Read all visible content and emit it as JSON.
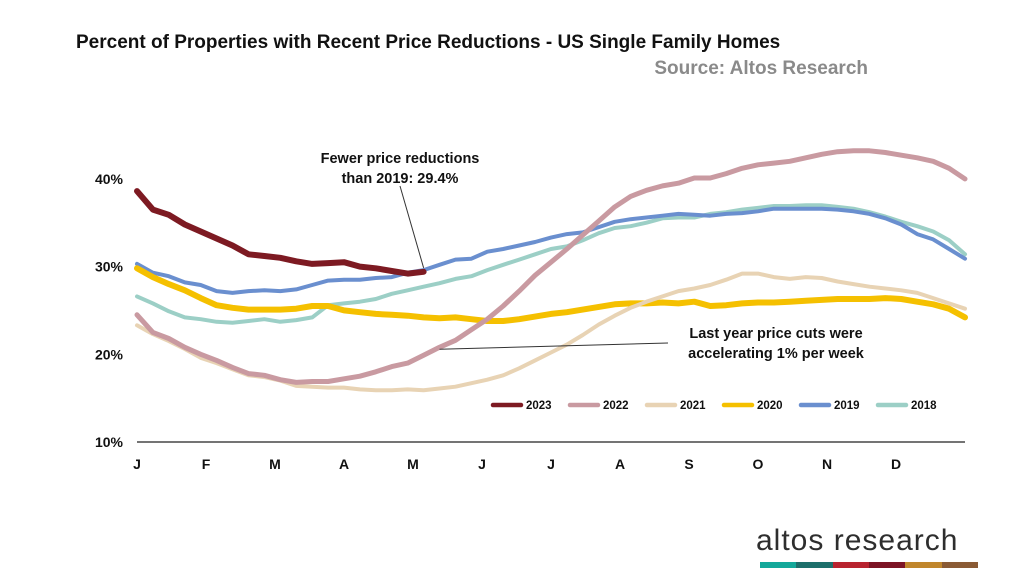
{
  "title": "Percent of Properties with Recent Price Reductions - US Single Family Homes",
  "subtitle": "Source: Altos Research",
  "logo": {
    "text": "altos research",
    "stripe_colors": [
      "#14a89a",
      "#1d6f6b",
      "#b8232f",
      "#7c1424",
      "#c0862b",
      "#8a5a34"
    ]
  },
  "chart_data": {
    "type": "line",
    "title": "Percent of Properties with Recent Price Reductions - US Single Family Homes",
    "subtitle": "Source: Altos Research",
    "xlabel": "",
    "ylabel": "",
    "x_tick_labels": [
      "J",
      "F",
      "M",
      "A",
      "M",
      "J",
      "J",
      "A",
      "S",
      "O",
      "N",
      "D"
    ],
    "x_range": [
      0,
      52
    ],
    "ylim": [
      10,
      45
    ],
    "y_ticks": [
      10,
      20,
      30,
      40
    ],
    "y_tick_labels": [
      "10%",
      "20%",
      "30%",
      "40%"
    ],
    "legend_position": "bottom-right",
    "grid": false,
    "series": [
      {
        "name": "2023",
        "color": "#7d1a22",
        "width": 6,
        "x": [
          0,
          1,
          2,
          3,
          4,
          5,
          6,
          7,
          8,
          9,
          10,
          11,
          12,
          13,
          14,
          15,
          16,
          17,
          18
        ],
        "y": [
          38.6,
          36.5,
          35.9,
          34.8,
          34.0,
          33.2,
          32.4,
          31.4,
          31.2,
          31.0,
          30.6,
          30.3,
          30.4,
          30.5,
          30.0,
          29.8,
          29.5,
          29.2,
          29.4
        ]
      },
      {
        "name": "2022",
        "color": "#c99aa1",
        "width": 5,
        "x": [
          0,
          1,
          2,
          3,
          4,
          5,
          6,
          7,
          8,
          9,
          10,
          11,
          12,
          13,
          14,
          15,
          16,
          17,
          18,
          19,
          20,
          21,
          22,
          23,
          24,
          25,
          26,
          27,
          28,
          29,
          30,
          31,
          32,
          33,
          34,
          35,
          36,
          37,
          38,
          39,
          40,
          41,
          42,
          43,
          44,
          45,
          46,
          47,
          48,
          49,
          50,
          51,
          52
        ],
        "y": [
          24.5,
          22.5,
          21.8,
          20.8,
          20.0,
          19.3,
          18.5,
          17.8,
          17.6,
          17.1,
          16.8,
          16.9,
          16.9,
          17.2,
          17.5,
          18.0,
          18.6,
          19.0,
          19.9,
          20.8,
          21.6,
          22.8,
          24.0,
          25.5,
          27.2,
          29.0,
          30.5,
          32.0,
          33.6,
          35.2,
          36.8,
          38.0,
          38.7,
          39.2,
          39.5,
          40.1,
          40.1,
          40.6,
          41.2,
          41.6,
          41.8,
          42.0,
          42.4,
          42.8,
          43.1,
          43.2,
          43.2,
          43.0,
          42.7,
          42.4,
          42.0,
          41.2,
          40.0
        ]
      },
      {
        "name": "2021",
        "color": "#e8d3b4",
        "width": 4,
        "x": [
          0,
          1,
          2,
          3,
          4,
          5,
          6,
          7,
          8,
          9,
          10,
          11,
          12,
          13,
          14,
          15,
          16,
          17,
          18,
          19,
          20,
          21,
          22,
          23,
          24,
          25,
          26,
          27,
          28,
          29,
          30,
          31,
          32,
          33,
          34,
          35,
          36,
          37,
          38,
          39,
          40,
          41,
          42,
          43,
          44,
          45,
          46,
          47,
          48,
          49,
          50,
          51,
          52
        ],
        "y": [
          23.3,
          22.3,
          21.5,
          20.6,
          19.6,
          19.0,
          18.3,
          17.6,
          17.4,
          17.0,
          16.4,
          16.3,
          16.2,
          16.2,
          16.0,
          15.9,
          15.9,
          16.0,
          15.9,
          16.1,
          16.3,
          16.7,
          17.1,
          17.6,
          18.4,
          19.3,
          20.2,
          21.1,
          22.2,
          23.4,
          24.4,
          25.3,
          26.0,
          26.6,
          27.2,
          27.5,
          27.9,
          28.5,
          29.2,
          29.2,
          28.8,
          28.6,
          28.8,
          28.7,
          28.3,
          28.0,
          27.7,
          27.5,
          27.3,
          27.0,
          26.4,
          25.8,
          25.2
        ]
      },
      {
        "name": "2020",
        "color": "#f5c000",
        "width": 6,
        "x": [
          0,
          1,
          2,
          3,
          4,
          5,
          6,
          7,
          8,
          9,
          10,
          11,
          12,
          13,
          14,
          15,
          16,
          17,
          18,
          19,
          20,
          21,
          22,
          23,
          24,
          25,
          26,
          27,
          28,
          29,
          30,
          31,
          32,
          33,
          34,
          35,
          36,
          37,
          38,
          39,
          40,
          41,
          42,
          43,
          44,
          45,
          46,
          47,
          48,
          49,
          50,
          51,
          52
        ],
        "y": [
          29.8,
          28.8,
          28.0,
          27.3,
          26.4,
          25.6,
          25.3,
          25.1,
          25.1,
          25.1,
          25.2,
          25.5,
          25.5,
          25.0,
          24.8,
          24.6,
          24.5,
          24.4,
          24.2,
          24.1,
          24.2,
          24.0,
          23.8,
          23.8,
          24.0,
          24.3,
          24.6,
          24.8,
          25.1,
          25.4,
          25.7,
          25.8,
          25.8,
          25.9,
          25.8,
          26.0,
          25.5,
          25.6,
          25.8,
          25.9,
          25.9,
          26.0,
          26.1,
          26.2,
          26.3,
          26.3,
          26.3,
          26.4,
          26.3,
          26.0,
          25.7,
          25.2,
          24.2
        ]
      },
      {
        "name": "2019",
        "color": "#6a8fcf",
        "width": 4,
        "x": [
          0,
          1,
          2,
          3,
          4,
          5,
          6,
          7,
          8,
          9,
          10,
          11,
          12,
          13,
          14,
          15,
          16,
          17,
          18,
          19,
          20,
          21,
          22,
          23,
          24,
          25,
          26,
          27,
          28,
          29,
          30,
          31,
          32,
          33,
          34,
          35,
          36,
          37,
          38,
          39,
          40,
          41,
          42,
          43,
          44,
          45,
          46,
          47,
          48,
          49,
          50,
          51,
          52
        ],
        "y": [
          30.3,
          29.3,
          28.9,
          28.2,
          27.9,
          27.2,
          27.0,
          27.2,
          27.3,
          27.2,
          27.4,
          27.9,
          28.4,
          28.5,
          28.5,
          28.7,
          28.8,
          29.3,
          29.6,
          30.2,
          30.8,
          30.9,
          31.7,
          32.0,
          32.4,
          32.8,
          33.3,
          33.7,
          33.9,
          34.5,
          35.1,
          35.4,
          35.6,
          35.8,
          36.0,
          35.9,
          35.8,
          36.0,
          36.1,
          36.3,
          36.6,
          36.6,
          36.6,
          36.6,
          36.5,
          36.3,
          36.0,
          35.5,
          34.8,
          33.7,
          33.1,
          32.0,
          30.9
        ]
      },
      {
        "name": "2018",
        "color": "#9ccfc6",
        "width": 4,
        "x": [
          0,
          1,
          2,
          3,
          4,
          5,
          6,
          7,
          8,
          9,
          10,
          11,
          12,
          13,
          14,
          15,
          16,
          17,
          18,
          19,
          20,
          21,
          22,
          23,
          24,
          25,
          26,
          27,
          28,
          29,
          30,
          31,
          32,
          33,
          34,
          35,
          36,
          37,
          38,
          39,
          40,
          41,
          42,
          43,
          44,
          45,
          46,
          47,
          48,
          49,
          50,
          51,
          52
        ],
        "y": [
          26.6,
          25.8,
          24.9,
          24.2,
          24.0,
          23.7,
          23.6,
          23.8,
          24.0,
          23.7,
          23.9,
          24.2,
          25.6,
          25.8,
          26.0,
          26.3,
          26.9,
          27.3,
          27.7,
          28.1,
          28.6,
          28.9,
          29.6,
          30.2,
          30.8,
          31.4,
          32.0,
          32.3,
          33.0,
          33.8,
          34.4,
          34.6,
          35.0,
          35.5,
          35.6,
          35.6,
          36.0,
          36.2,
          36.5,
          36.7,
          36.9,
          36.9,
          37.0,
          37.0,
          36.8,
          36.6,
          36.2,
          35.7,
          35.1,
          34.6,
          34.0,
          33.0,
          31.4
        ]
      }
    ],
    "annotations": [
      {
        "lines": [
          "Fewer price reductions",
          "than 2019: 29.4%"
        ],
        "points_to": {
          "series": "2023",
          "x": 18,
          "y": 29.4
        }
      },
      {
        "lines": [
          "Last year price cuts were",
          "accelerating 1% per week"
        ],
        "points_to": {
          "series": "2022",
          "x": 19,
          "y": 20.8
        }
      }
    ]
  }
}
